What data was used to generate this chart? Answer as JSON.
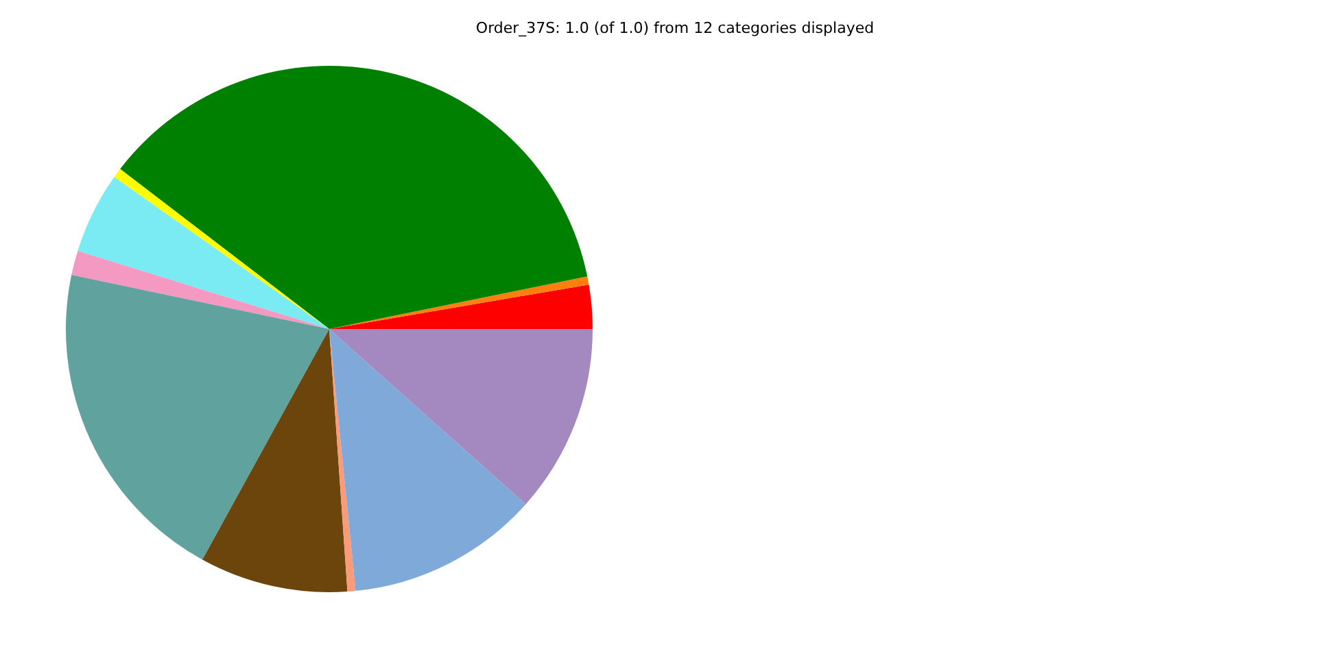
{
  "chart_data": {
    "type": "pie",
    "title": "Order_37S: 1.0 (of 1.0) from 12 categories displayed",
    "categories": [
      null,
      null,
      null,
      null,
      null,
      null,
      null,
      null,
      null,
      null,
      null
    ],
    "values": [
      2.7,
      0.5,
      36.4,
      0.6,
      5.0,
      1.5,
      20.3,
      9.1,
      0.5,
      11.8,
      11.6
    ],
    "colors": [
      "#ff0000",
      "#ff7f0e",
      "#008000",
      "#ffff00",
      "#7aebf2",
      "#f49ac2",
      "#5fa29e",
      "#6b450b",
      "#f99b7a",
      "#7fa9d9",
      "#a389c0"
    ],
    "legend": false
  }
}
